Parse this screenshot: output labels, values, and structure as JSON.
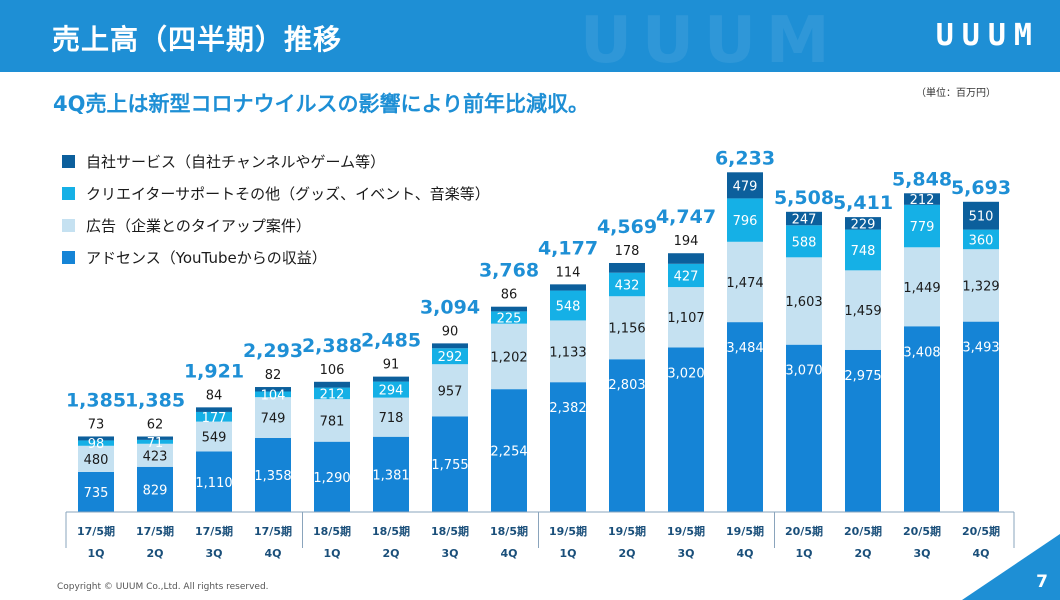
{
  "header": {
    "title": "売上高（四半期）推移",
    "logo": "UUUM"
  },
  "subtitle": "4Q売上は新型コロナウイルスの影響により前年比減収。",
  "unit_note": "（単位：百万円）",
  "footer": {
    "copyright": "Copyright © UUUM Co.,Ltd. All rights reserved.",
    "page_number": "7"
  },
  "colors": {
    "brand": "#1e8fd5",
    "own_service": "#0c5f9c",
    "creator_support": "#15b0e6",
    "ads": "#c5e1f1",
    "adsense": "#1584d6"
  },
  "chart_data": {
    "type": "bar",
    "stacked": true,
    "categories": [
      "17/5期 1Q",
      "17/5期 2Q",
      "17/5期 3Q",
      "17/5期 4Q",
      "18/5期 1Q",
      "18/5期 2Q",
      "18/5期 3Q",
      "18/5期 4Q",
      "19/5期 1Q",
      "19/5期 2Q",
      "19/5期 3Q",
      "19/5期 4Q",
      "20/5期 1Q",
      "20/5期 2Q",
      "20/5期 3Q",
      "20/5期 4Q"
    ],
    "period_labels": [
      "17/5期",
      "17/5期",
      "17/5期",
      "17/5期",
      "18/5期",
      "18/5期",
      "18/5期",
      "18/5期",
      "19/5期",
      "19/5期",
      "19/5期",
      "19/5期",
      "20/5期",
      "20/5期",
      "20/5期",
      "20/5期"
    ],
    "quarter_labels": [
      "1Q",
      "2Q",
      "3Q",
      "4Q",
      "1Q",
      "2Q",
      "3Q",
      "4Q",
      "1Q",
      "2Q",
      "3Q",
      "4Q",
      "1Q",
      "2Q",
      "3Q",
      "4Q"
    ],
    "series": [
      {
        "name": "アドセンス（YouTubeからの収益）",
        "values": [
          735,
          829,
          1110,
          1358,
          1290,
          1381,
          1755,
          2254,
          2382,
          2803,
          3020,
          3484,
          3070,
          2975,
          3408,
          3493
        ],
        "labels": [
          "735",
          "829",
          "1,110",
          "1,358",
          "1,290",
          "1,381",
          "1,755",
          "2,254",
          "2,382",
          "2,803",
          "3,020",
          "3,484",
          "3,070",
          "2,975",
          "3,408",
          "3,493"
        ]
      },
      {
        "name": "広告（企業とのタイアップ案件）",
        "values": [
          480,
          423,
          549,
          749,
          781,
          718,
          957,
          1202,
          1133,
          1156,
          1107,
          1474,
          1603,
          1459,
          1449,
          1329
        ],
        "labels": [
          "480",
          "423",
          "549",
          "749",
          "781",
          "718",
          "957",
          "1,202",
          "1,133",
          "1,156",
          "1,107",
          "1,474",
          "1,603",
          "1,459",
          "1,449",
          "1,329"
        ]
      },
      {
        "name": "クリエイターサポートその他（グッズ、イベント、音楽等）",
        "values": [
          98,
          71,
          177,
          104,
          212,
          294,
          292,
          225,
          548,
          432,
          427,
          796,
          588,
          748,
          779,
          360
        ],
        "labels": [
          "98",
          "71",
          "177",
          "104",
          "212",
          "294",
          "292",
          "225",
          "548",
          "432",
          "427",
          "796",
          "588",
          "748",
          "779",
          "360"
        ]
      },
      {
        "name": "自社サービス（自社チャンネルやゲーム等）",
        "values": [
          73,
          62,
          84,
          82,
          106,
          91,
          90,
          86,
          114,
          178,
          194,
          479,
          247,
          229,
          212,
          510
        ],
        "labels": [
          "73",
          "62",
          "84",
          "82",
          "106",
          "91",
          "90",
          "86",
          "114",
          "178",
          "194",
          "479",
          "247",
          "229",
          "212",
          "510"
        ]
      }
    ],
    "totals": [
      1385,
      1385,
      1921,
      2293,
      2388,
      2485,
      3094,
      3768,
      4177,
      4569,
      4747,
      6233,
      5508,
      5411,
      5848,
      5693
    ],
    "total_labels": [
      "1,385",
      "1,385",
      "1,921",
      "2,293",
      "2,388",
      "2,485",
      "3,094",
      "3,768",
      "4,177",
      "4,569",
      "4,747",
      "6,233",
      "5,508",
      "5,411",
      "5,848",
      "5,693"
    ],
    "ylim": [
      0,
      7000
    ],
    "grid": false,
    "legend_position": "top-left"
  }
}
